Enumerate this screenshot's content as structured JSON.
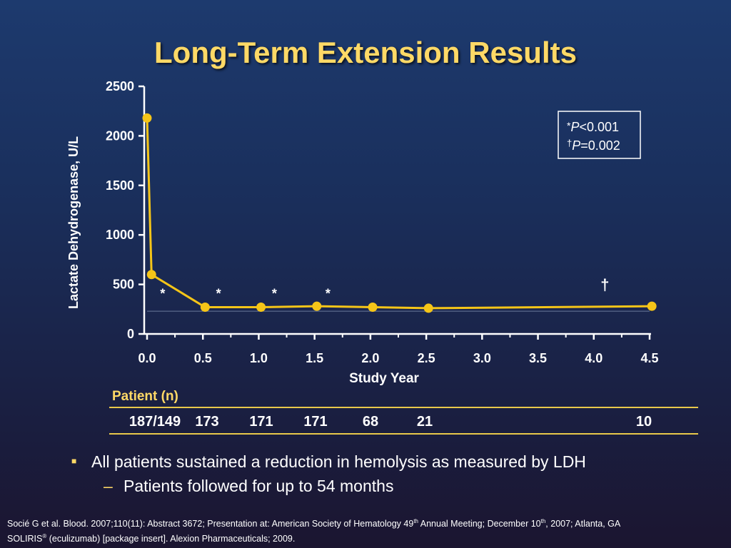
{
  "title": "Long-Term Extension Results",
  "chart_data": {
    "type": "line",
    "ylabel": "Lactate Dehydrogenase, U/L",
    "xlabel": "Study Year",
    "ylim": [
      0,
      2500
    ],
    "xlim": [
      0,
      4.5
    ],
    "y_ticks": [
      "0",
      "500",
      "1000",
      "1500",
      "2000",
      "2500"
    ],
    "x_ticks": [
      "0.0",
      "0.5",
      "1.0",
      "1.5",
      "2.0",
      "2.5",
      "3.0",
      "3.5",
      "4.0",
      "4.5"
    ],
    "series": [
      {
        "x": [
          0.0,
          0.04,
          0.52,
          1.02,
          1.52,
          2.02,
          2.52,
          4.52
        ],
        "values": [
          2180,
          600,
          270,
          270,
          280,
          270,
          260,
          280
        ],
        "color": "#f5c518"
      }
    ],
    "reference_line": 230,
    "annotations": [
      {
        "text": "*",
        "x": 0.14,
        "y": 420
      },
      {
        "text": "*",
        "x": 0.64,
        "y": 420
      },
      {
        "text": "*",
        "x": 1.14,
        "y": 420
      },
      {
        "text": "*",
        "x": 1.62,
        "y": 420
      },
      {
        "text": "†",
        "x": 4.1,
        "y": 500
      }
    ],
    "legend_box": {
      "line1_symbol": "*",
      "line1_p": "P",
      "line1_value": "<0.001",
      "line2_symbol": "†",
      "line2_p": "P",
      "line2_value": "=0.002",
      "position": "top-right"
    }
  },
  "patients": {
    "heading": "Patient (n)",
    "counts": [
      "187/149",
      "173",
      "171",
      "171",
      "68",
      "21",
      "10"
    ]
  },
  "bullets": {
    "main": "All patients sustained a reduction in hemolysis as measured by LDH",
    "sub": "Patients followed for up to 54 months",
    "bullet_symbol": "■",
    "dash_symbol": "–"
  },
  "references": {
    "line1_a": "Socié G et al. Blood. 2007;110(11): Abstract 3672; Presentation at: American Society of Hematology 49",
    "line1_sup1": "th",
    "line1_b": " Annual Meeting; December 10",
    "line1_sup2": "th",
    "line1_c": ", 2007; Atlanta, GA",
    "line2_a": "SOLIRIS",
    "line2_sup": "®",
    "line2_b": " (eculizumab) [package insert]. Alexion Pharmaceuticals; 2009."
  }
}
